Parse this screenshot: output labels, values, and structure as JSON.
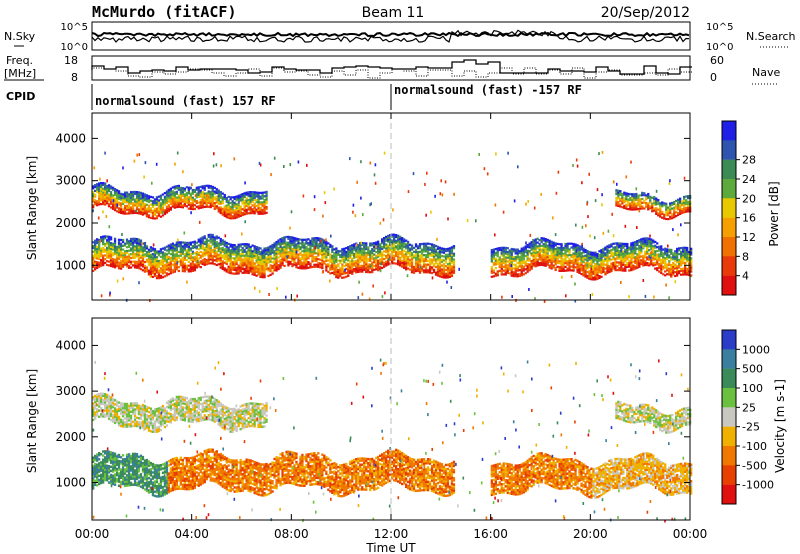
{
  "header": {
    "station": "McMurdo (fitACF)",
    "beam": "Beam 11",
    "date": "20/Sep/2012"
  },
  "noise_panel": {
    "left_label": "N.Sky",
    "right_label": "N.Search",
    "left_ticks": [
      "10^5",
      "10^0"
    ],
    "right_ticks": [
      "10^5",
      "10^0"
    ]
  },
  "freq_panel": {
    "left_label_1": "Freq.",
    "left_label_2": "[MHz]",
    "left_ticks": [
      "18",
      "8"
    ],
    "right_label": "Nave",
    "right_ticks": [
      "60",
      "0"
    ]
  },
  "cpid": {
    "label": "CPID",
    "segments": [
      {
        "start_hour": 0,
        "text": "normalsound (fast) 157 RF"
      },
      {
        "start_hour": 12,
        "text": "normalsound (fast) -157 RF"
      }
    ]
  },
  "chart_data": [
    {
      "type": "heatmap",
      "parameter": "Power",
      "xlabel": "",
      "ylabel": "Slant Range [km]",
      "x_ticks": [
        "00:00",
        "04:00",
        "08:00",
        "12:00",
        "16:00",
        "20:00",
        "00:00"
      ],
      "x_range_hours": [
        0,
        24
      ],
      "y_ticks": [
        1000,
        2000,
        3000,
        4000
      ],
      "ylim": [
        180,
        4600
      ],
      "colorbar": {
        "label": "Power [dB]",
        "ticks": [
          "4",
          "8",
          "12",
          "16",
          "20",
          "24",
          "28"
        ],
        "colors": [
          "#1f1fe8",
          "#2d55b0",
          "#3c8a56",
          "#5caa3c",
          "#e8c800",
          "#f5a000",
          "#f07000",
          "#e83a0a",
          "#e01010"
        ]
      },
      "echo_bands_hours_km": [
        {
          "start": 0.0,
          "end": 14.5,
          "center_km": 1200,
          "width_km": 700
        },
        {
          "start": 0.0,
          "end": 7.0,
          "center_km": 2500,
          "width_km": 500
        },
        {
          "start": 16.0,
          "end": 24.0,
          "center_km": 1150,
          "width_km": 650
        },
        {
          "start": 21.0,
          "end": 24.0,
          "center_km": 2450,
          "width_km": 400
        }
      ]
    },
    {
      "type": "heatmap",
      "parameter": "Velocity",
      "xlabel": "Time UT",
      "ylabel": "Slant Range [km]",
      "x_ticks": [
        "00:00",
        "04:00",
        "08:00",
        "12:00",
        "16:00",
        "20:00",
        "00:00"
      ],
      "x_range_hours": [
        0,
        24
      ],
      "y_ticks": [
        1000,
        2000,
        3000,
        4000
      ],
      "ylim": [
        180,
        4600
      ],
      "colorbar": {
        "label": "Velocity [m s-1]",
        "ticks": [
          "1000",
          "500",
          "100",
          "25",
          "-25",
          "-100",
          "-500",
          "-1000"
        ],
        "colors": [
          "#2a3cc8",
          "#3a7fa0",
          "#3a8a5a",
          "#6cc040",
          "#c8c8c0",
          "#f0b000",
          "#f07800",
          "#e84000",
          "#e01010"
        ]
      },
      "echo_bands_hours_km": [
        {
          "start": 0.0,
          "end": 14.5,
          "center_km": 1200,
          "width_km": 700
        },
        {
          "start": 0.0,
          "end": 7.0,
          "center_km": 2500,
          "width_km": 500
        },
        {
          "start": 16.0,
          "end": 24.0,
          "center_km": 1150,
          "width_km": 650
        },
        {
          "start": 21.0,
          "end": 24.0,
          "center_km": 2450,
          "width_km": 400
        }
      ]
    }
  ]
}
